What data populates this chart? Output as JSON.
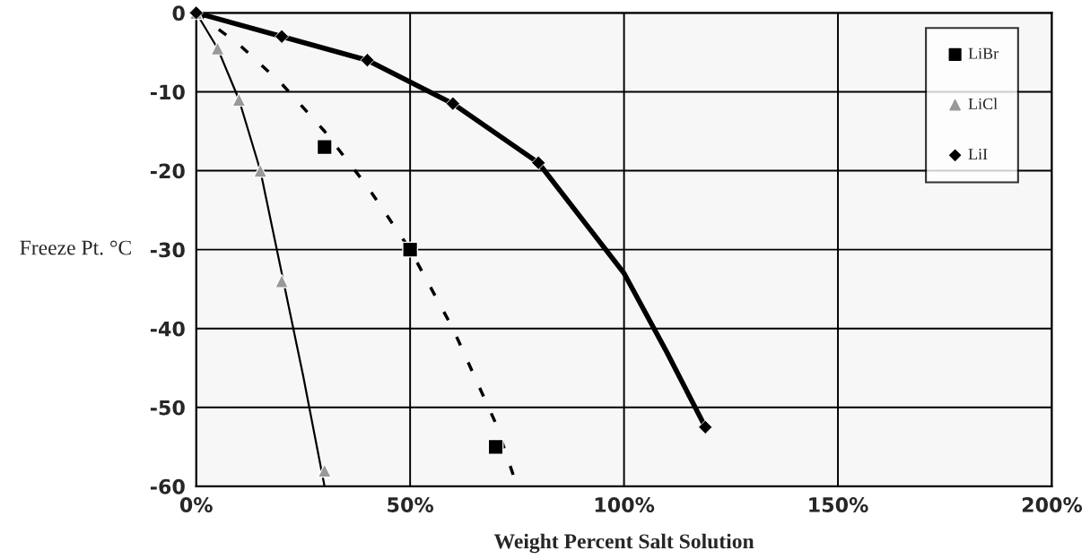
{
  "chart_data": {
    "type": "scatter",
    "xlabel": "Weight Percent Salt Solution",
    "ylabel": "Freeze Pt. °C",
    "xlim": [
      0,
      200
    ],
    "ylim": [
      -60,
      0
    ],
    "xticks": [
      {
        "value": 0,
        "label": "0%"
      },
      {
        "value": 50,
        "label": "50%"
      },
      {
        "value": 100,
        "label": "100%"
      },
      {
        "value": 150,
        "label": "150%"
      },
      {
        "value": 200,
        "label": "200%"
      }
    ],
    "yticks": [
      -60,
      -50,
      -40,
      -30,
      -20,
      -10,
      0
    ],
    "grid": true,
    "legend": "top right",
    "series": [
      {
        "type": "line",
        "color": "#000000",
        "line_style": "dashed",
        "marker": "none",
        "x": [
          0,
          10,
          20,
          30,
          40,
          50,
          60,
          70,
          75
        ],
        "values": [
          0,
          -4,
          -9,
          -15,
          -22,
          -30,
          -40,
          -52,
          -60
        ]
      },
      {
        "type": "line",
        "color": "#000000",
        "line_style": "solid",
        "marker": "none",
        "x": [
          0,
          5,
          10,
          15,
          20,
          25,
          30
        ],
        "values": [
          0,
          -4.5,
          -11,
          -20,
          -33,
          -46,
          -60
        ]
      },
      {
        "type": "line",
        "color": "#000000",
        "line_style": "solid",
        "marker": "none",
        "x": [
          0,
          20,
          40,
          60,
          80,
          100,
          110,
          119
        ],
        "values": [
          0,
          -3,
          -6,
          -11.5,
          -19,
          -33,
          -43,
          -52.5
        ]
      },
      {
        "name": "LiBr",
        "color": "#000000",
        "marker": "square",
        "x": [
          30,
          50,
          70
        ],
        "values": [
          -17,
          -30,
          -55
        ]
      },
      {
        "name": "LiCl",
        "color": "#999999",
        "marker": "triangle",
        "x": [
          0,
          5,
          10,
          15,
          20,
          30
        ],
        "values": [
          0,
          -4.5,
          -11,
          -20,
          -34,
          -58
        ]
      },
      {
        "name": "LiI",
        "color": "#000000",
        "marker": "diamond",
        "x": [
          0,
          20,
          40,
          60,
          80,
          119
        ],
        "values": [
          0,
          -3,
          -6,
          -11.5,
          -19,
          -52.5
        ]
      }
    ]
  }
}
